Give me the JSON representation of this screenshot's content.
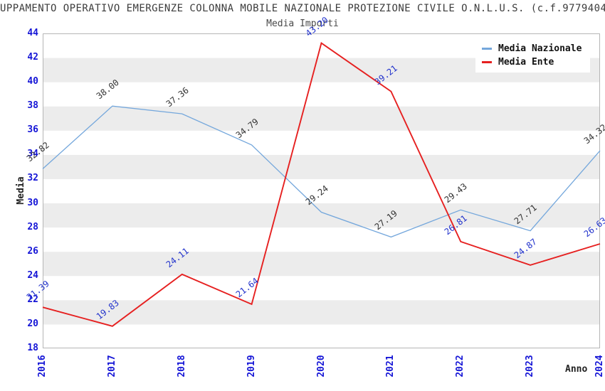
{
  "header": {
    "title": "UPPAMENTO OPERATIVO EMERGENZE COLONNA MOBILE NAZIONALE PROTEZIONE CIVILE O.N.L.U.S. (c.f.9779404",
    "subtitle": "Media Importi"
  },
  "chart_data": {
    "type": "line",
    "x": [
      "2016",
      "2017",
      "2018",
      "2019",
      "2020",
      "2021",
      "2022",
      "2023",
      "2024"
    ],
    "series": [
      {
        "name": "Media Nazionale",
        "color": "#74a7dc",
        "label_color": "#333333",
        "line_width": 1.3,
        "values": [
          32.82,
          38.0,
          37.36,
          34.79,
          29.24,
          27.19,
          29.43,
          27.71,
          34.32
        ]
      },
      {
        "name": "Media Ente",
        "color": "#e62020",
        "label_color": "#2233cc",
        "line_width": 1.9,
        "values": [
          21.39,
          19.83,
          24.11,
          21.64,
          43.2,
          39.21,
          26.81,
          24.87,
          26.63
        ]
      }
    ],
    "xlabel": "Anno",
    "ylabel": "Media",
    "ylim": [
      18,
      44
    ],
    "ytick_step": 2,
    "grid": "horizontal-bands",
    "band_colors": [
      "#ffffff",
      "#ececec"
    ],
    "plot_border_color": "#b6b6b6",
    "axis_tick_color": "#1515d6",
    "legend_position": "top-right",
    "point_label_decimals": 2
  }
}
